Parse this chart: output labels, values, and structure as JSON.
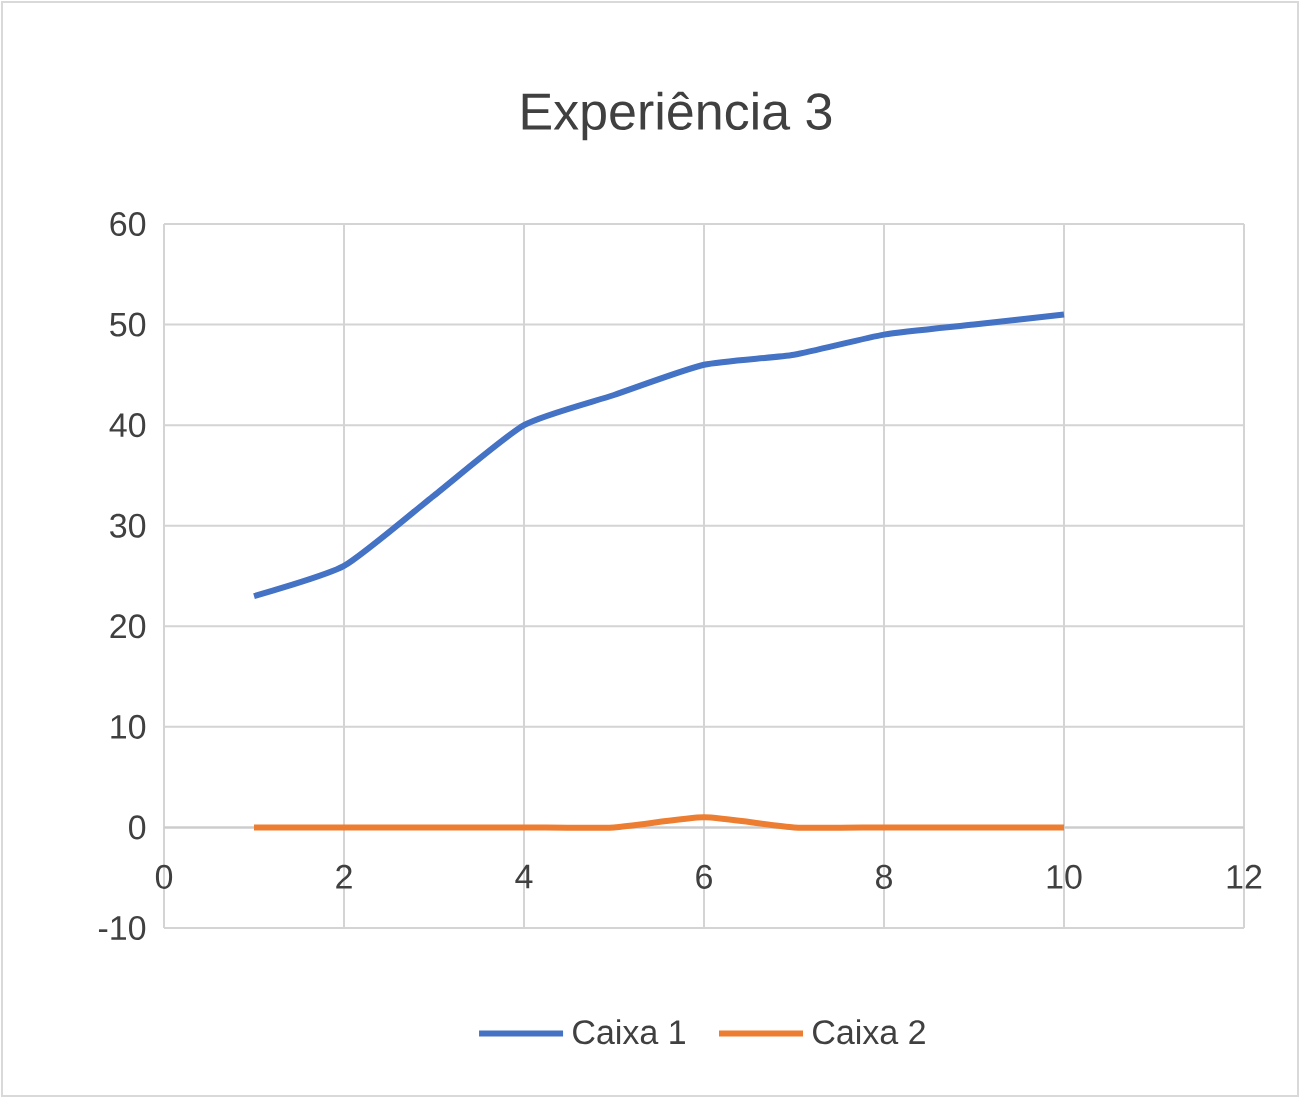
{
  "chart_data": {
    "type": "line",
    "title": "Experiência 3",
    "x": [
      1,
      2,
      3,
      4,
      5,
      6,
      7,
      8,
      9,
      10
    ],
    "series": [
      {
        "name": "Caixa 1",
        "color": "#4472c4",
        "values": [
          23,
          26,
          33,
          40,
          43,
          46,
          47,
          49,
          50,
          51
        ]
      },
      {
        "name": "Caixa 2",
        "color": "#ed7d31",
        "values": [
          0,
          0,
          0,
          0,
          0,
          1,
          0,
          0,
          0,
          0
        ]
      }
    ],
    "xlim": [
      0,
      12
    ],
    "xticks": [
      0,
      2,
      4,
      6,
      8,
      10,
      12
    ],
    "ylim": [
      -10,
      60
    ],
    "yticks": [
      -10,
      0,
      10,
      20,
      30,
      40,
      50,
      60
    ],
    "grid": true,
    "legend": "bottom",
    "marker": "none",
    "line_style": "solid"
  }
}
